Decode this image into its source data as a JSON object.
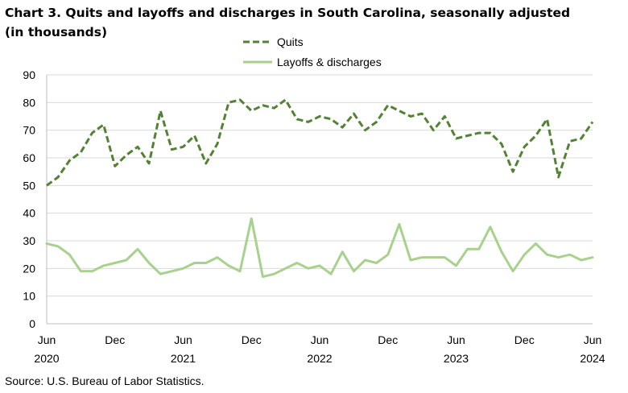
{
  "title": "Chart 3. Quits and layoffs and discharges in South Carolina, seasonally adjusted (in thousands)",
  "source": "Source: U.S. Bureau of Labor Statistics.",
  "chart_data": {
    "type": "line",
    "title": "Chart 3. Quits and layoffs and discharges in South Carolina, seasonally adjusted (in thousands)",
    "xlabel": "",
    "ylabel": "",
    "ylim": [
      0,
      90
    ],
    "yticks": [
      "0",
      "10",
      "20",
      "30",
      "40",
      "50",
      "60",
      "70",
      "80",
      "90"
    ],
    "x_tick_labels": [
      {
        "month": "Jun",
        "year": "2020"
      },
      {
        "month": "Dec",
        "year": ""
      },
      {
        "month": "Jun",
        "year": "2021"
      },
      {
        "month": "Dec",
        "year": ""
      },
      {
        "month": "Jun",
        "year": "2022"
      },
      {
        "month": "Dec",
        "year": ""
      },
      {
        "month": "Jun",
        "year": "2023"
      },
      {
        "month": "Dec",
        "year": ""
      },
      {
        "month": "Jun",
        "year": "2024"
      }
    ],
    "x": [
      "Jun 2020",
      "Jul 2020",
      "Aug 2020",
      "Sep 2020",
      "Oct 2020",
      "Nov 2020",
      "Dec 2020",
      "Jan 2021",
      "Feb 2021",
      "Mar 2021",
      "Apr 2021",
      "May 2021",
      "Jun 2021",
      "Jul 2021",
      "Aug 2021",
      "Sep 2021",
      "Oct 2021",
      "Nov 2021",
      "Dec 2021",
      "Jan 2022",
      "Feb 2022",
      "Mar 2022",
      "Apr 2022",
      "May 2022",
      "Jun 2022",
      "Jul 2022",
      "Aug 2022",
      "Sep 2022",
      "Oct 2022",
      "Nov 2022",
      "Dec 2022",
      "Jan 2023",
      "Feb 2023",
      "Mar 2023",
      "Apr 2023",
      "May 2023",
      "Jun 2023",
      "Jul 2023",
      "Aug 2023",
      "Sep 2023",
      "Oct 2023",
      "Nov 2023",
      "Dec 2023",
      "Jan 2024",
      "Feb 2024",
      "Mar 2024",
      "Apr 2024",
      "May 2024",
      "Jun 2024"
    ],
    "legend_position": "top-center",
    "grid": true,
    "series": [
      {
        "name": "Quits",
        "style": "dashed",
        "color": "#548235",
        "values": [
          50,
          53,
          59,
          62,
          69,
          72,
          57,
          61,
          64,
          58,
          77,
          63,
          64,
          68,
          58,
          65,
          80,
          81,
          77,
          79,
          78,
          81,
          74,
          73,
          75,
          74,
          71,
          76,
          70,
          73,
          79,
          77,
          75,
          76,
          70,
          75,
          67,
          68,
          69,
          69,
          65,
          55,
          64,
          68,
          74,
          53,
          66,
          67,
          73
        ]
      },
      {
        "name": "Layoffs & discharges",
        "style": "solid",
        "color": "#a9d18e",
        "values": [
          29,
          28,
          25,
          19,
          19,
          21,
          22,
          23,
          27,
          22,
          18,
          19,
          20,
          22,
          22,
          24,
          21,
          19,
          38,
          17,
          18,
          20,
          22,
          20,
          21,
          18,
          26,
          19,
          23,
          22,
          25,
          36,
          23,
          24,
          24,
          24,
          21,
          27,
          27,
          35,
          26,
          19,
          25,
          29,
          25,
          24,
          25,
          23,
          24
        ]
      }
    ]
  }
}
